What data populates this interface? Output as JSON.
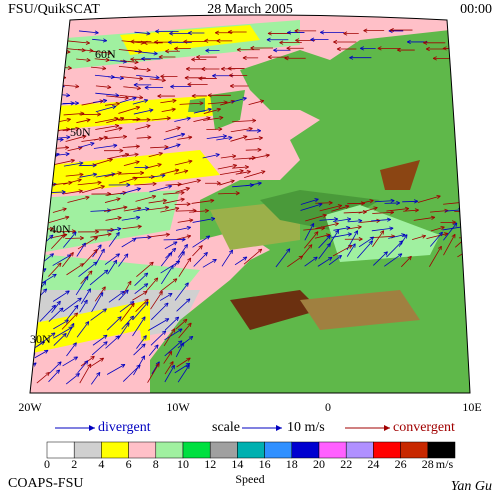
{
  "header": {
    "left": "FSU/QuikSCAT",
    "center": "28 March 2005",
    "right": "00:00"
  },
  "lat_labels": [
    "60N",
    "50N",
    "40N",
    "30N"
  ],
  "lon_labels": [
    "20W",
    "10W",
    "0",
    "10E"
  ],
  "legend": {
    "divergent": "divergent",
    "scale": "scale",
    "scale_value": "10 m/s",
    "convergent": "convergent"
  },
  "colorbar": {
    "title": "Speed",
    "unit": "m/s",
    "ticks": [
      0,
      2,
      4,
      6,
      8,
      10,
      12,
      14,
      16,
      18,
      20,
      22,
      24,
      26,
      28
    ],
    "colors": [
      "#ffffff",
      "#d0d0d0",
      "#ffff00",
      "#ffc0c8",
      "#a0f0a0",
      "#00e040",
      "#a0a0a0",
      "#00b0b0",
      "#3090ff",
      "#0000d0",
      "#ff60ff",
      "#b090ff",
      "#ff0000",
      "#c82800",
      "#000000"
    ]
  },
  "footer": {
    "left": "COAPS-FSU",
    "right": "Yan Gu"
  }
}
